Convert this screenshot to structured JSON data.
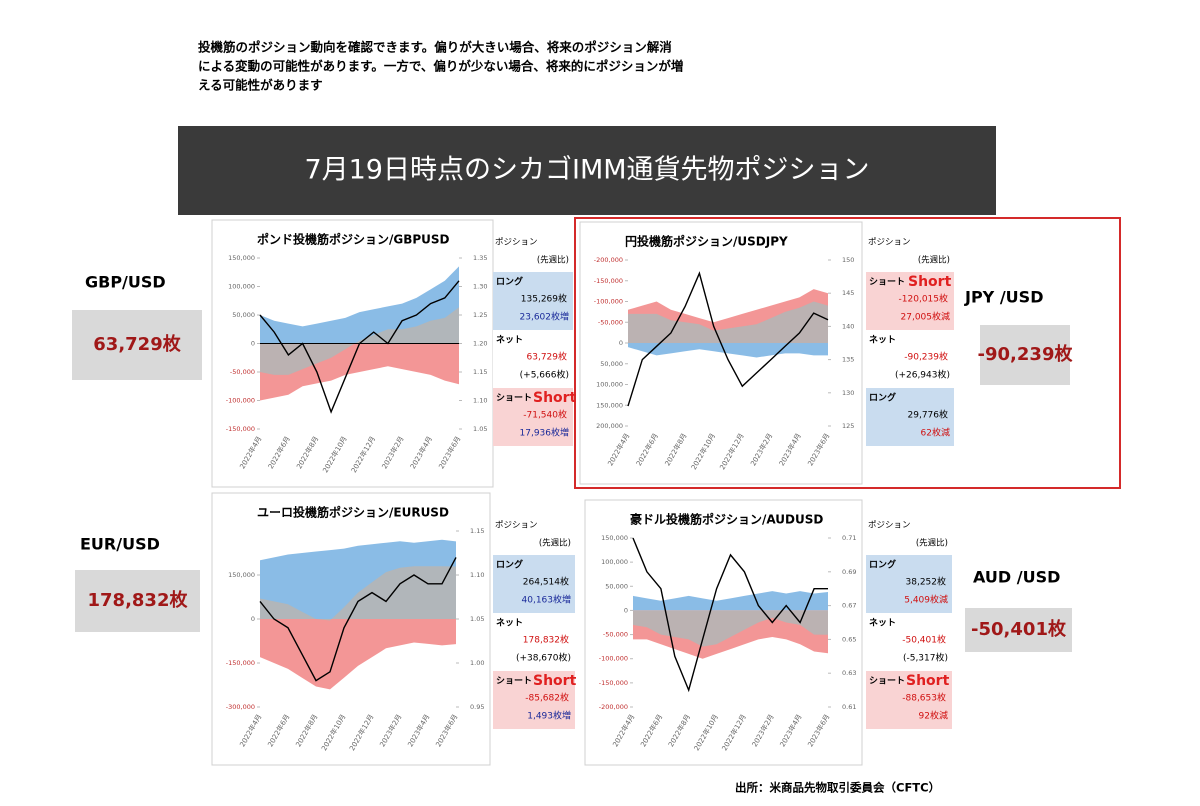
{
  "intro": [
    "投機筋のポジション動向を確認できます。偏りが大きい場合、将来のポジション解消",
    "による変動の可能性があります。一方で、偏りが少ない場合、将来的にポジションが増",
    "える可能性があります"
  ],
  "banner": "7月19日時点のシカゴIMM通貨先物ポジション",
  "source": "出所：米商品先物取引委員会（CFTC）",
  "panels": [
    {
      "pair": "GBP/USD",
      "pair_value": "63,729枚",
      "header": "ポジション",
      "sub": "(先週比)",
      "note": "Short",
      "rows": [
        {
          "name": "ロング",
          "value": "135,269枚",
          "change": "23,602枚増",
          "bg": "#c9dcef",
          "value_color": "#000",
          "change_color": "#1a2a9a"
        },
        {
          "name": "ネット",
          "value": "63,729枚",
          "change": "(+5,666枚)",
          "bg": "#ffffff",
          "value_color": "#d01010",
          "change_color": "#000"
        },
        {
          "name": "ショート",
          "value": "-71,540枚",
          "change": "17,936枚増",
          "bg": "#f9d3d3",
          "value_color": "#d01010",
          "change_color": "#1a2a9a"
        }
      ]
    },
    {
      "pair": "JPY /USD",
      "pair_value": "-90,239枚",
      "header": "ポジション",
      "sub": "(先週比)",
      "note": "Short",
      "rows": [
        {
          "name": "ショート",
          "value": "-120,015枚",
          "change": "27,005枚減",
          "bg": "#f9d3d3",
          "value_color": "#d01010",
          "change_color": "#d01010"
        },
        {
          "name": "ネット",
          "value": "-90,239枚",
          "change": "(+26,943枚)",
          "bg": "#ffffff",
          "value_color": "#d01010",
          "change_color": "#000"
        },
        {
          "name": "ロング",
          "value": "29,776枚",
          "change": "62枚減",
          "bg": "#c9dcef",
          "value_color": "#000",
          "change_color": "#d01010"
        }
      ]
    },
    {
      "pair": "EUR/USD",
      "pair_value": "178,832枚",
      "header": "ポジション",
      "sub": "(先週比)",
      "note": "Short",
      "rows": [
        {
          "name": "ロング",
          "value": "264,514枚",
          "change": "40,163枚増",
          "bg": "#c9dcef",
          "value_color": "#000",
          "change_color": "#1a2a9a"
        },
        {
          "name": "ネット",
          "value": "178,832枚",
          "change": "(+38,670枚)",
          "bg": "#ffffff",
          "value_color": "#d01010",
          "change_color": "#000"
        },
        {
          "name": "ショート",
          "value": "-85,682枚",
          "change": "1,493枚増",
          "bg": "#f9d3d3",
          "value_color": "#d01010",
          "change_color": "#1a2a9a"
        }
      ]
    },
    {
      "pair": "AUD /USD",
      "pair_value": "-50,401枚",
      "header": "ポジション",
      "sub": "(先週比)",
      "note": "Short",
      "rows": [
        {
          "name": "ロング",
          "value": "38,252枚",
          "change": "5,409枚減",
          "bg": "#c9dcef",
          "value_color": "#000",
          "change_color": "#d01010"
        },
        {
          "name": "ネット",
          "value": "-50,401枚",
          "change": "(-5,317枚)",
          "bg": "#ffffff",
          "value_color": "#d01010",
          "change_color": "#000"
        },
        {
          "name": "ショート",
          "value": "-88,653枚",
          "change": "92枚減",
          "bg": "#f9d3d3",
          "value_color": "#d01010",
          "change_color": "#d01010"
        }
      ]
    }
  ],
  "chart_data": [
    {
      "type": "area",
      "title": "ポンド投機筋ポジション/GBPUSD",
      "zero_line": true,
      "categories": [
        "2022年4月",
        null,
        "2022年6月",
        null,
        "2022年8月",
        null,
        "2022年10月",
        null,
        "2022年12月",
        null,
        "2023年2月",
        null,
        "2023年4月",
        null,
        "2023年6月"
      ],
      "ylim": [
        -150000,
        150000
      ],
      "yticks": [
        {
          "value": 150000,
          "label": "150,000"
        },
        {
          "value": 100000,
          "label": "100,000"
        },
        {
          "value": 50000,
          "label": "50,000"
        },
        0,
        {
          "value": -50000,
          "label": "-50,000"
        },
        {
          "value": -100000,
          "label": "-100,000"
        },
        {
          "value": -150000,
          "label": "-150,000"
        }
      ],
      "y2lim": [
        1.05,
        1.35
      ],
      "y2ticks": [
        1.35,
        {
          "value": 1.3,
          "label": "1.30"
        },
        1.25,
        {
          "value": 1.2,
          "label": "1.20"
        },
        1.15,
        {
          "value": 1.1,
          "label": "1.10"
        },
        1.05
      ],
      "series": [
        {
          "color": "#7db5e3",
          "values": [
            50000,
            40000,
            35000,
            30000,
            35000,
            40000,
            45000,
            55000,
            60000,
            65000,
            70000,
            80000,
            95000,
            110000,
            135269
          ]
        },
        {
          "color": "#f28b8b",
          "values": [
            -100000,
            -95000,
            -90000,
            -75000,
            -70000,
            -65000,
            -55000,
            -50000,
            -45000,
            -40000,
            -45000,
            -50000,
            -55000,
            -65000,
            -71540
          ]
        },
        {
          "color": "#b5b5b5",
          "values": [
            -50000,
            -55000,
            -55000,
            -45000,
            -35000,
            -25000,
            -10000,
            5000,
            15000,
            25000,
            25000,
            30000,
            40000,
            45000,
            63729
          ]
        },
        {
          "color": "#000000",
          "axis": "y2",
          "values": [
            1.25,
            1.22,
            1.18,
            1.2,
            1.15,
            1.08,
            1.14,
            1.2,
            1.22,
            1.2,
            1.24,
            1.25,
            1.27,
            1.28,
            1.31
          ]
        }
      ]
    },
    {
      "type": "area",
      "title": "円投機筋ポジション/USDJPY",
      "zero_line": false,
      "categories": [
        "2022年4月",
        null,
        "2022年6月",
        null,
        "2022年8月",
        null,
        "2022年10月",
        null,
        "2022年12月",
        null,
        "2023年2月",
        null,
        "2023年4月",
        null,
        "2023年6月"
      ],
      "ylim": [
        200000,
        -200000
      ],
      "yticks": [
        {
          "value": -200000,
          "label": "-200,000"
        },
        {
          "value": -150000,
          "label": "-150,000"
        },
        {
          "value": -100000,
          "label": "-100,000"
        },
        {
          "value": -50000,
          "label": "-50,000"
        },
        0,
        {
          "value": 50000,
          "label": "50,000"
        },
        {
          "value": 100000,
          "label": "100,000"
        },
        {
          "value": 150000,
          "label": "150,000"
        },
        {
          "value": 200000,
          "label": "200,000"
        }
      ],
      "y2lim": [
        125,
        150
      ],
      "y2ticks": [
        150,
        145,
        140,
        135,
        130,
        125
      ],
      "series": [
        {
          "color": "#7db5e3",
          "values": [
            10000,
            20000,
            30000,
            25000,
            20000,
            15000,
            20000,
            25000,
            30000,
            35000,
            30000,
            25000,
            25000,
            30000,
            29776
          ]
        },
        {
          "color": "#f28b8b",
          "values": [
            -80000,
            -90000,
            -100000,
            -80000,
            -70000,
            -60000,
            -50000,
            -60000,
            -70000,
            -80000,
            -90000,
            -100000,
            -110000,
            -130000,
            -120015
          ]
        },
        {
          "color": "#b5b5b5",
          "values": [
            -70000,
            -70000,
            -70000,
            -55000,
            -50000,
            -45000,
            -30000,
            -35000,
            -40000,
            -45000,
            -60000,
            -75000,
            -85000,
            -100000,
            -90239
          ]
        },
        {
          "color": "#000000",
          "axis": "y2",
          "values": [
            128,
            135,
            137,
            139,
            143,
            148,
            140,
            135,
            131,
            133,
            135,
            137,
            139,
            142,
            141
          ]
        }
      ]
    },
    {
      "type": "area",
      "title": "ユーロ投機筋ポジション/EURUSD",
      "zero_line": false,
      "categories": [
        "2022年4月",
        null,
        "2022年6月",
        null,
        "2022年8月",
        null,
        "2022年10月",
        null,
        "2022年12月",
        null,
        "2023年2月",
        null,
        "2023年4月",
        null,
        "2023年6月"
      ],
      "ylim": [
        -300000,
        300000
      ],
      "yticks": [
        {
          "value": 150000,
          "label": "150,000"
        },
        0,
        {
          "value": -150000,
          "label": "-150,000"
        },
        {
          "value": -300000,
          "label": "-300,000"
        }
      ],
      "y2lim": [
        0.95,
        1.15
      ],
      "y2ticks": [
        1.15,
        {
          "value": 1.1,
          "label": "1.10"
        },
        1.05,
        {
          "value": 1,
          "label": "1.00"
        },
        0.95
      ],
      "series": [
        {
          "color": "#7db5e3",
          "values": [
            200000,
            210000,
            220000,
            225000,
            230000,
            235000,
            240000,
            250000,
            255000,
            260000,
            265000,
            260000,
            265000,
            270000,
            264514
          ]
        },
        {
          "color": "#f28b8b",
          "values": [
            -130000,
            -150000,
            -170000,
            -200000,
            -230000,
            -240000,
            -200000,
            -160000,
            -130000,
            -100000,
            -90000,
            -80000,
            -85000,
            -90000,
            -85682
          ]
        },
        {
          "color": "#b5b5b5",
          "values": [
            70000,
            60000,
            50000,
            25000,
            0,
            -5000,
            40000,
            90000,
            125000,
            160000,
            175000,
            180000,
            180000,
            180000,
            178832
          ]
        },
        {
          "color": "#000000",
          "axis": "y2",
          "values": [
            1.07,
            1.05,
            1.04,
            1.01,
            0.98,
            0.99,
            1.04,
            1.07,
            1.08,
            1.07,
            1.09,
            1.1,
            1.09,
            1.09,
            1.12
          ]
        }
      ]
    },
    {
      "type": "area",
      "title": "豪ドル投機筋ポジション/AUDUSD",
      "zero_line": false,
      "categories": [
        "2022年4月",
        null,
        "2022年6月",
        null,
        "2022年8月",
        null,
        "2022年10月",
        null,
        "2022年12月",
        null,
        "2023年2月",
        null,
        "2023年4月",
        null,
        "2023年6月"
      ],
      "ylim": [
        -200000,
        150000
      ],
      "yticks": [
        {
          "value": 150000,
          "label": "150,000"
        },
        {
          "value": 100000,
          "label": "100,000"
        },
        {
          "value": 50000,
          "label": "50,000"
        },
        0,
        {
          "value": -50000,
          "label": "-50,000"
        },
        {
          "value": -100000,
          "label": "-100,000"
        },
        {
          "value": -150000,
          "label": "-150,000"
        },
        {
          "value": -200000,
          "label": "-200,000"
        }
      ],
      "y2lim": [
        0.61,
        0.71
      ],
      "y2ticks": [
        0.71,
        0.69,
        0.67,
        0.65,
        0.63,
        0.61
      ],
      "series": [
        {
          "color": "#7db5e3",
          "values": [
            30000,
            25000,
            20000,
            25000,
            30000,
            25000,
            20000,
            25000,
            30000,
            35000,
            40000,
            35000,
            40000,
            35000,
            38252
          ]
        },
        {
          "color": "#f28b8b",
          "values": [
            -60000,
            -60000,
            -70000,
            -80000,
            -90000,
            -100000,
            -90000,
            -80000,
            -70000,
            -60000,
            -55000,
            -60000,
            -70000,
            -85000,
            -88653
          ]
        },
        {
          "color": "#b5b5b5",
          "values": [
            -30000,
            -35000,
            -50000,
            -55000,
            -60000,
            -75000,
            -70000,
            -55000,
            -40000,
            -25000,
            -15000,
            -25000,
            -30000,
            -50000,
            -50401
          ]
        },
        {
          "color": "#000000",
          "axis": "y2",
          "values": [
            0.71,
            0.69,
            0.68,
            0.64,
            0.62,
            0.65,
            0.68,
            0.7,
            0.69,
            0.67,
            0.66,
            0.67,
            0.66,
            0.68,
            0.68
          ]
        }
      ]
    }
  ]
}
